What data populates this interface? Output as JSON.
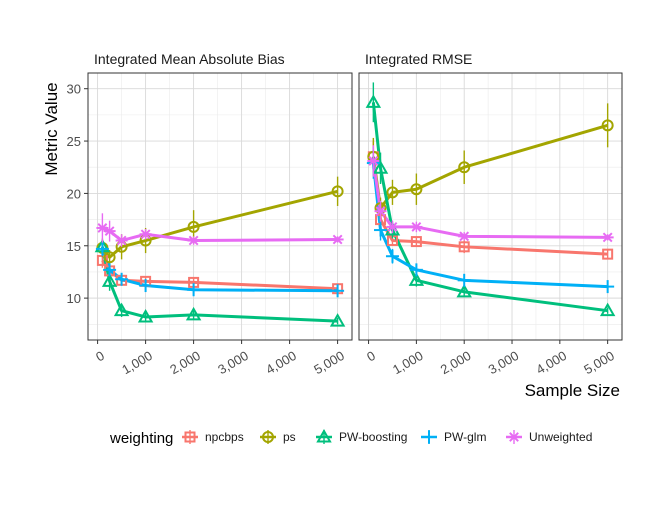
{
  "chart_data": {
    "type": "line",
    "ylabel": "Metric Value",
    "xlabel": "Sample Size",
    "x": [
      100,
      250,
      500,
      1000,
      2000,
      5000
    ],
    "xlim": [
      -200,
      5300
    ],
    "ylim": [
      6.0,
      31.5
    ],
    "x_ticks": [
      0,
      1000,
      2000,
      3000,
      4000,
      5000
    ],
    "x_tick_labels": [
      "0",
      "1,000",
      "2,000",
      "3,000",
      "4,000",
      "5,000"
    ],
    "y_ticks": [
      10,
      15,
      20,
      25,
      30
    ],
    "y_tick_labels": [
      "10",
      "15",
      "20",
      "25",
      "30"
    ],
    "legend": {
      "title": "weighting",
      "position": "bottom",
      "entries": [
        {
          "name": "npcbps",
          "color": "#F8766D",
          "shape": "square"
        },
        {
          "name": "ps",
          "color": "#A3A500",
          "shape": "circle"
        },
        {
          "name": "PW-boosting",
          "color": "#00BF7D",
          "shape": "triangle"
        },
        {
          "name": "PW-glm",
          "color": "#00B0F6",
          "shape": "plus"
        },
        {
          "name": "Unweighted",
          "color": "#E76BF3",
          "shape": "asterisk"
        }
      ]
    },
    "panels": [
      {
        "title": "Integrated Mean Absolute Bias",
        "series": [
          {
            "name": "npcbps",
            "values": [
              13.6,
              12.6,
              11.7,
              11.6,
              11.5,
              10.9
            ],
            "err": [
              0.7,
              0.5,
              0.4,
              0.4,
              0.5,
              0.3
            ]
          },
          {
            "name": "ps",
            "values": [
              14.8,
              13.9,
              14.9,
              15.5,
              16.8,
              20.2
            ],
            "err": [
              0.9,
              0.7,
              1.2,
              1.2,
              1.6,
              1.4
            ]
          },
          {
            "name": "PW-boosting",
            "values": [
              14.9,
              11.6,
              8.8,
              8.2,
              8.4,
              7.8
            ],
            "err": [
              0.7,
              0.9,
              0.6,
              0.4,
              0.4,
              0.3
            ]
          },
          {
            "name": "PW-glm",
            "values": [
              14.7,
              12.7,
              11.8,
              11.2,
              10.8,
              10.7
            ],
            "err": [
              0.7,
              0.6,
              0.5,
              0.4,
              0.5,
              0.4
            ]
          },
          {
            "name": "Unweighted",
            "values": [
              16.7,
              16.4,
              15.5,
              16.1,
              15.5,
              15.6
            ],
            "err": [
              1.4,
              1.0,
              0.6,
              0.5,
              0.4,
              0.3
            ]
          }
        ]
      },
      {
        "title": "Integrated RMSE",
        "series": [
          {
            "name": "npcbps",
            "values": [
              23.5,
              17.5,
              15.5,
              15.4,
              14.9,
              14.2
            ],
            "err": [
              1.5,
              1.0,
              0.5,
              0.5,
              0.6,
              0.5
            ]
          },
          {
            "name": "ps",
            "values": [
              23.5,
              18.6,
              20.1,
              20.4,
              22.5,
              26.5
            ],
            "err": [
              1.8,
              1.0,
              1.2,
              1.5,
              1.6,
              2.1
            ]
          },
          {
            "name": "PW-boosting",
            "values": [
              28.7,
              22.4,
              16.5,
              11.7,
              10.6,
              8.8
            ],
            "err": [
              1.9,
              1.5,
              0.8,
              0.6,
              0.5,
              0.3
            ]
          },
          {
            "name": "PW-glm",
            "values": [
              22.9,
              16.5,
              14.0,
              12.7,
              11.7,
              11.1
            ],
            "err": [
              1.5,
              1.0,
              0.7,
              0.5,
              0.5,
              0.4
            ]
          },
          {
            "name": "Unweighted",
            "values": [
              23.1,
              18.3,
              16.8,
              16.8,
              15.9,
              15.8
            ],
            "err": [
              1.5,
              1.0,
              0.6,
              0.5,
              0.4,
              0.3
            ]
          }
        ]
      }
    ]
  }
}
